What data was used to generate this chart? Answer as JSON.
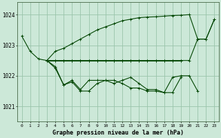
{
  "background_color": "#cce8d8",
  "grid_color": "#99c4aa",
  "line_color": "#004400",
  "xlabel": "Graphe pression niveau de la mer (hPa)",
  "ylabel_ticks": [
    1021,
    1022,
    1023,
    1024
  ],
  "xlim": [
    -0.5,
    23.5
  ],
  "ylim": [
    1020.5,
    1024.4
  ],
  "xticks": [
    0,
    1,
    2,
    3,
    4,
    5,
    6,
    7,
    8,
    9,
    10,
    11,
    12,
    13,
    14,
    15,
    16,
    17,
    18,
    19,
    20,
    21,
    22,
    23
  ],
  "series": [
    [
      1023.3,
      1022.8,
      1022.55,
      1022.5,
      null,
      null,
      null,
      null,
      null,
      null,
      null,
      null,
      null,
      null,
      null,
      null,
      null,
      null,
      null,
      null,
      null,
      null,
      null,
      null
    ],
    [
      null,
      null,
      null,
      1022.5,
      1022.5,
      1022.5,
      1022.5,
      1022.5,
      1022.5,
      1022.5,
      1022.5,
      1022.5,
      1022.5,
      1022.5,
      1022.5,
      1022.5,
      1022.5,
      1022.5,
      1022.5,
      1022.5,
      null,
      null,
      null,
      null
    ],
    [
      null,
      null,
      null,
      1022.5,
      1022.3,
      1021.7,
      1021.8,
      1021.5,
      1021.5,
      1021.75,
      1021.85,
      1021.75,
      1021.85,
      1021.95,
      1021.75,
      1021.55,
      1021.55,
      1021.45,
      1021.45,
      1021.95,
      null,
      null,
      null,
      null
    ],
    [
      null,
      null,
      null,
      1022.5,
      1022.25,
      1021.7,
      1021.85,
      1021.55,
      1021.85,
      1021.85,
      1021.85,
      1021.85,
      1021.75,
      1021.6,
      1021.6,
      1021.5,
      1021.5,
      1021.45,
      1021.95,
      1022.0,
      1022.0,
      1021.5,
      null,
      null
    ],
    [
      null,
      null,
      null,
      1022.5,
      1022.5,
      1022.5,
      1022.5,
      1022.5,
      1022.5,
      1022.5,
      1022.5,
      1022.5,
      1022.5,
      1022.5,
      1022.5,
      1022.5,
      1022.5,
      1022.5,
      1022.5,
      1022.5,
      1022.5,
      1023.2,
      1023.2,
      1023.85
    ],
    [
      null,
      null,
      null,
      1022.5,
      1022.8,
      1022.9,
      1023.05,
      1023.2,
      1023.35,
      1023.5,
      1023.6,
      1023.7,
      1023.8,
      1023.85,
      1023.9,
      1023.92,
      1023.93,
      1023.95,
      1023.97,
      1023.98,
      1024.0,
      1023.2,
      1023.2,
      1023.85
    ]
  ]
}
